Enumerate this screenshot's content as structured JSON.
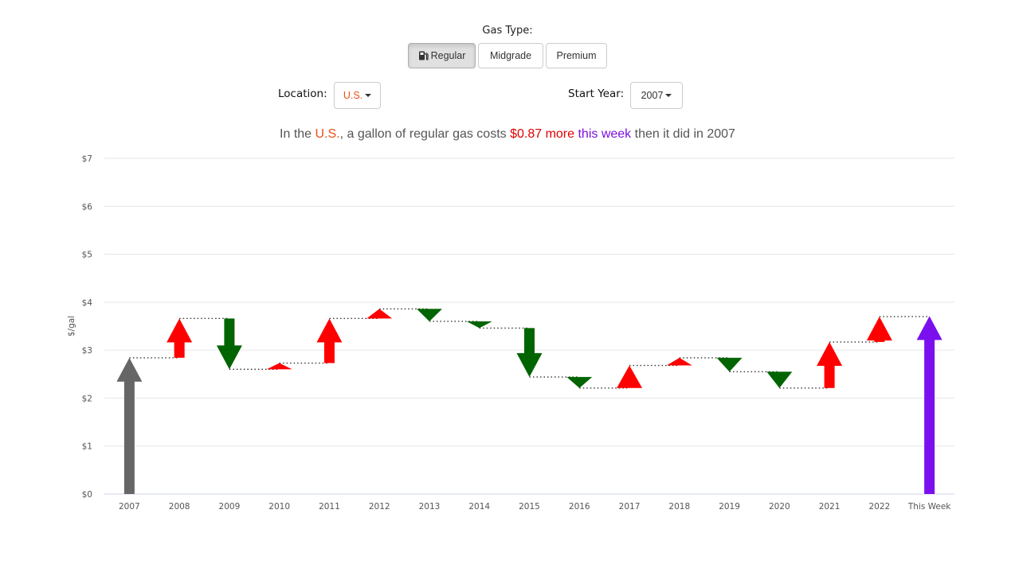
{
  "controls": {
    "gas_type_label": "Gas Type:",
    "buttons": [
      "Regular",
      "Midgrade",
      "Premium"
    ],
    "selected_gas": "Regular",
    "location_label": "Location:",
    "location_value": "U.S.",
    "start_year_label": "Start Year:",
    "start_year_value": "2007"
  },
  "headline": {
    "prefix": "In the ",
    "location": "U.S.",
    "middle": ", a gallon of regular gas costs ",
    "amount": "$0.87 more",
    "space": " ",
    "week": "this week",
    "suffix": " then it did in ",
    "year": "2007"
  },
  "colors": {
    "up": "#ff0000",
    "down": "#006400",
    "start": "#666666",
    "current": "#7b10ee",
    "location_text": "#e8511a"
  },
  "chart_data": {
    "type": "bar",
    "categories": [
      "2007",
      "2008",
      "2009",
      "2010",
      "2011",
      "2012",
      "2013",
      "2014",
      "2015",
      "2016",
      "2017",
      "2018",
      "2019",
      "2020",
      "2021",
      "2022",
      "This Week"
    ],
    "values": [
      2.84,
      3.66,
      2.6,
      2.73,
      3.66,
      3.86,
      3.6,
      3.46,
      2.44,
      2.21,
      2.68,
      2.84,
      2.55,
      2.21,
      3.17,
      3.7,
      3.71
    ],
    "ylabel": "$/gal",
    "ylim": [
      0,
      7
    ],
    "yticks": [
      "$0",
      "$1",
      "$2",
      "$3",
      "$4",
      "$5",
      "$6",
      "$7"
    ],
    "grid": true
  }
}
